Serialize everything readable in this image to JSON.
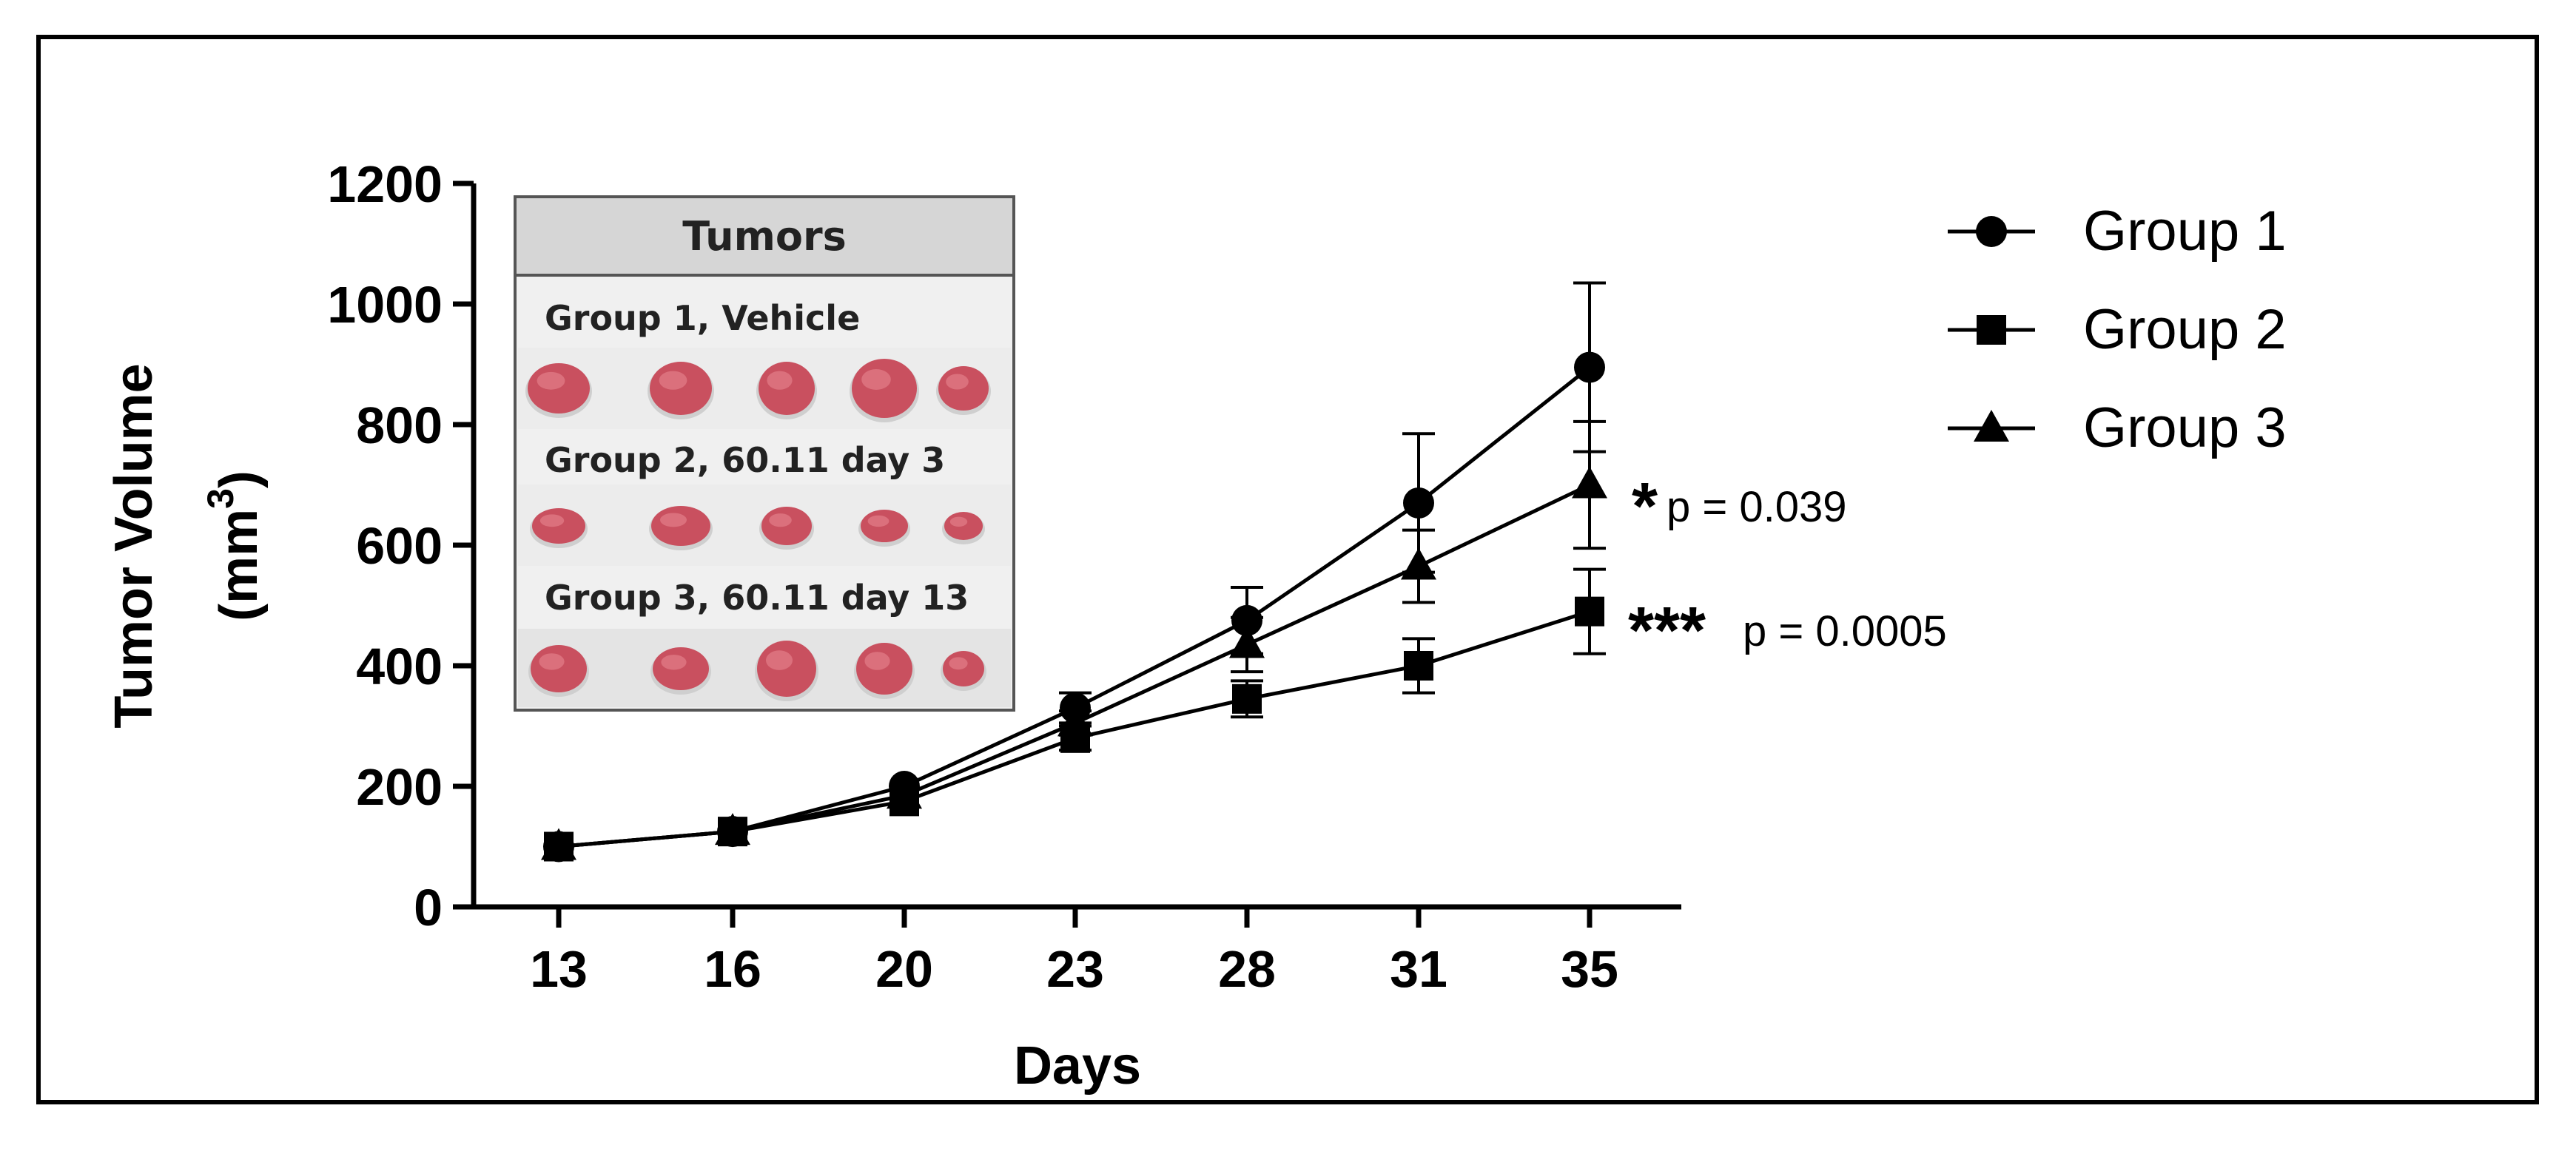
{
  "chart_data": {
    "type": "line",
    "xlabel": "Days",
    "ylabel_line1": "Tumor Volume",
    "ylabel_line2_prefix": "(mm",
    "ylabel_line2_sup": "3",
    "ylabel_line2_suffix": ")",
    "ylim": [
      0,
      1200
    ],
    "yticks": [
      0,
      200,
      400,
      600,
      800,
      1000,
      1200
    ],
    "ytick_labels": [
      "0",
      "200",
      "400",
      "600",
      "800",
      "1000",
      "1200"
    ],
    "categories": [
      "13",
      "16",
      "20",
      "23",
      "28",
      "31",
      "35"
    ],
    "series": [
      {
        "name": "Group 1",
        "marker": "circle",
        "values": [
          100,
          125,
          200,
          330,
          475,
          670,
          895
        ],
        "error": [
          0,
          0,
          0,
          25,
          55,
          115,
          140
        ]
      },
      {
        "name": "Group 2",
        "marker": "square",
        "values": [
          100,
          125,
          175,
          280,
          345,
          400,
          490
        ],
        "error": [
          0,
          0,
          0,
          20,
          30,
          45,
          70
        ]
      },
      {
        "name": "Group 3",
        "marker": "triangle",
        "values": [
          100,
          125,
          185,
          305,
          435,
          565,
          700
        ],
        "error": [
          0,
          0,
          0,
          20,
          45,
          60,
          105
        ]
      }
    ],
    "annotations": [
      {
        "series": "Group 3",
        "stars": "*",
        "pvalue": "p = 0.039"
      },
      {
        "series": "Group 2",
        "stars": "***",
        "pvalue": "p = 0.0005"
      }
    ],
    "legend": [
      "Group 1",
      "Group 2",
      "Group 3"
    ],
    "legend_position": "top-right"
  },
  "inset": {
    "header": "Tumors",
    "rows": [
      {
        "label": "Group 1, Vehicle",
        "tumor_count": 5
      },
      {
        "label": "Group 2, 60.11 day 3",
        "tumor_count": 5
      },
      {
        "label": "Group 3, 60.11 day 13",
        "tumor_count": 5
      }
    ]
  },
  "colors": {
    "line": "#000000",
    "inset_header_bg": "#d6d6d6",
    "inset_body_bg": "#f0f0f0",
    "tumor": "#c9505f",
    "tumor_highlight": "#e07b86"
  }
}
